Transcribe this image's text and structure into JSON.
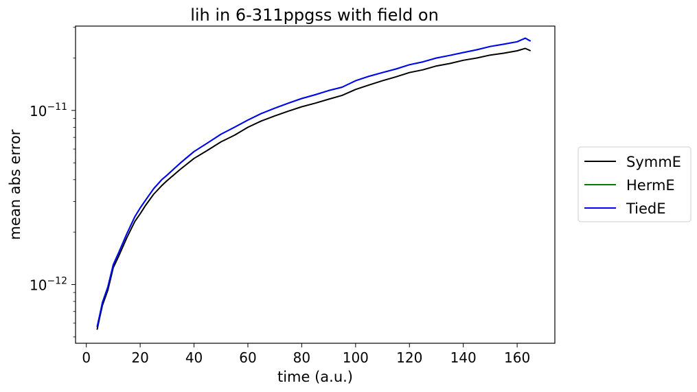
{
  "chart_data": {
    "type": "line",
    "title": "lih in 6-311ppgss with field on",
    "xlabel": "time (a.u.)",
    "ylabel": "mean abs error",
    "xlim": [
      -4,
      174
    ],
    "ylim": [
      4.6e-13,
      3.05e-11
    ],
    "yscale": "log",
    "grid": false,
    "legend_placement": "right",
    "x_ticks": [
      0,
      20,
      40,
      60,
      80,
      100,
      120,
      140,
      160
    ],
    "x_tick_labels": [
      "0",
      "20",
      "40",
      "60",
      "80",
      "100",
      "120",
      "140",
      "160"
    ],
    "y_ticks": [
      1e-12,
      1e-11
    ],
    "y_tick_labels": [
      {
        "base": "10",
        "exp": "−12"
      },
      {
        "base": "10",
        "exp": "−11"
      }
    ],
    "x": [
      4,
      5,
      6,
      8,
      10,
      12,
      15,
      18,
      20,
      22,
      25,
      28,
      30,
      35,
      40,
      45,
      50,
      55,
      60,
      65,
      70,
      75,
      80,
      85,
      90,
      95,
      100,
      105,
      110,
      115,
      120,
      125,
      130,
      135,
      140,
      145,
      150,
      155,
      160,
      163,
      165
    ],
    "series": [
      {
        "name": "SymmE",
        "color": "#000000",
        "values": [
          5.5e-13,
          6.5e-13,
          7.6e-13,
          9.3e-13,
          1.25e-12,
          1.45e-12,
          1.85e-12,
          2.3e-12,
          2.55e-12,
          2.85e-12,
          3.3e-12,
          3.7e-12,
          3.95e-12,
          4.6e-12,
          5.3e-12,
          5.9e-12,
          6.6e-12,
          7.2e-12,
          8e-12,
          8.7e-12,
          9.3e-12,
          9.9e-12,
          1.05e-11,
          1.1e-11,
          1.16e-11,
          1.22e-11,
          1.32e-11,
          1.4e-11,
          1.48e-11,
          1.56e-11,
          1.65e-11,
          1.71e-11,
          1.8e-11,
          1.86e-11,
          1.94e-11,
          2e-11,
          2.08e-11,
          2.13e-11,
          2.2e-11,
          2.27e-11,
          2.2e-11
        ]
      },
      {
        "name": "HermE",
        "color": "#008000",
        "values": [
          5.7e-13,
          6.7e-13,
          7.9e-13,
          9.7e-13,
          1.3e-12,
          1.52e-12,
          1.95e-12,
          2.45e-12,
          2.75e-12,
          3.05e-12,
          3.55e-12,
          4e-12,
          4.25e-12,
          5e-12,
          5.8e-12,
          6.5e-12,
          7.3e-12,
          8e-12,
          8.8e-12,
          9.6e-12,
          1.03e-11,
          1.1e-11,
          1.17e-11,
          1.23e-11,
          1.3e-11,
          1.36e-11,
          1.48e-11,
          1.57e-11,
          1.65e-11,
          1.73e-11,
          1.83e-11,
          1.9e-11,
          2e-11,
          2.07e-11,
          2.15e-11,
          2.23e-11,
          2.33e-11,
          2.4e-11,
          2.48e-11,
          2.6e-11,
          2.5e-11
        ]
      },
      {
        "name": "TiedE",
        "color": "#0000ff",
        "values": [
          5.7e-13,
          6.7e-13,
          7.9e-13,
          9.7e-13,
          1.3e-12,
          1.52e-12,
          1.95e-12,
          2.45e-12,
          2.75e-12,
          3.05e-12,
          3.55e-12,
          4e-12,
          4.25e-12,
          5e-12,
          5.8e-12,
          6.5e-12,
          7.3e-12,
          8e-12,
          8.8e-12,
          9.6e-12,
          1.03e-11,
          1.1e-11,
          1.17e-11,
          1.23e-11,
          1.3e-11,
          1.36e-11,
          1.48e-11,
          1.57e-11,
          1.65e-11,
          1.73e-11,
          1.83e-11,
          1.9e-11,
          2e-11,
          2.07e-11,
          2.15e-11,
          2.23e-11,
          2.33e-11,
          2.4e-11,
          2.48e-11,
          2.6e-11,
          2.5e-11
        ]
      }
    ]
  }
}
